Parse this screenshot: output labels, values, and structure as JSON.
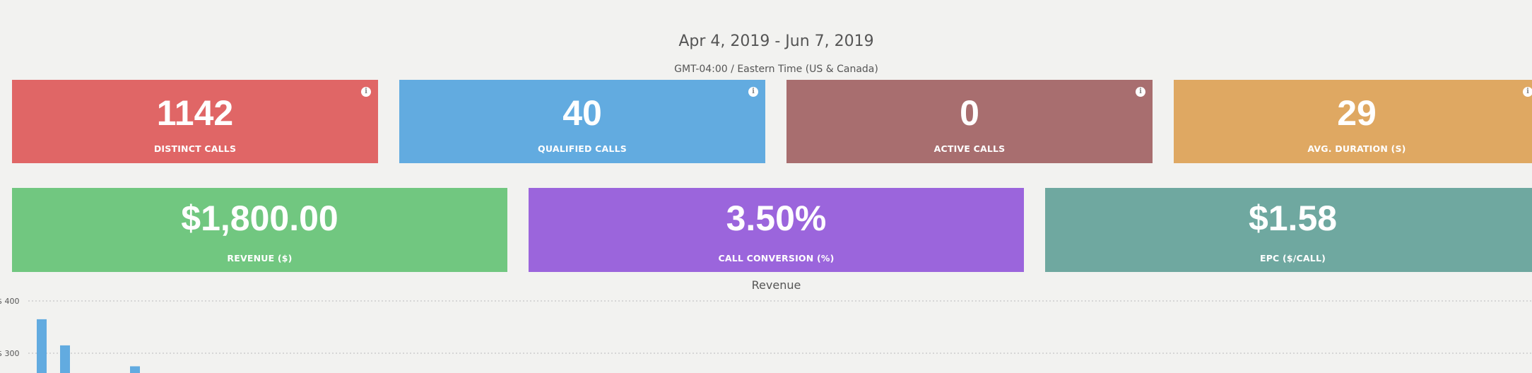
{
  "header": {
    "date_range": "Apr 4, 2019 - Jun 7, 2019",
    "timezone": "GMT-04:00 / Eastern Time (US & Canada)"
  },
  "kpi_row1": [
    {
      "value": "1142",
      "label": "DISTINCT CALLS",
      "color": "#e06666",
      "info_icon": "info-icon"
    },
    {
      "value": "40",
      "label": "QUALIFIED CALLS",
      "color": "#62abe0",
      "info_icon": "info-icon"
    },
    {
      "value": "0",
      "label": "ACTIVE CALLS",
      "color": "#a86e6f",
      "info_icon": "info-icon"
    },
    {
      "value": "29",
      "label": "AVG. DURATION (S)",
      "color": "#dfa862",
      "info_icon": "info-icon"
    }
  ],
  "kpi_row2": [
    {
      "value": "$1,800.00",
      "label": "REVENUE ($)",
      "color": "#71c780"
    },
    {
      "value": "3.50%",
      "label": "CALL CONVERSION (%)",
      "color": "#9b65dc"
    },
    {
      "value": "$1.58",
      "label": "EPC ($/CALL)",
      "color": "#6fa8a0"
    }
  ],
  "info_glyph": "i",
  "chart_data": {
    "type": "bar",
    "title": "Revenue",
    "y_ticks": [
      "$ 400",
      "$ 300"
    ],
    "ylim": [
      0,
      400
    ],
    "series": [
      {
        "values": [
          365,
          315,
          0,
          0,
          275
        ]
      }
    ],
    "bar_color": "#62abe0",
    "grid": true
  }
}
